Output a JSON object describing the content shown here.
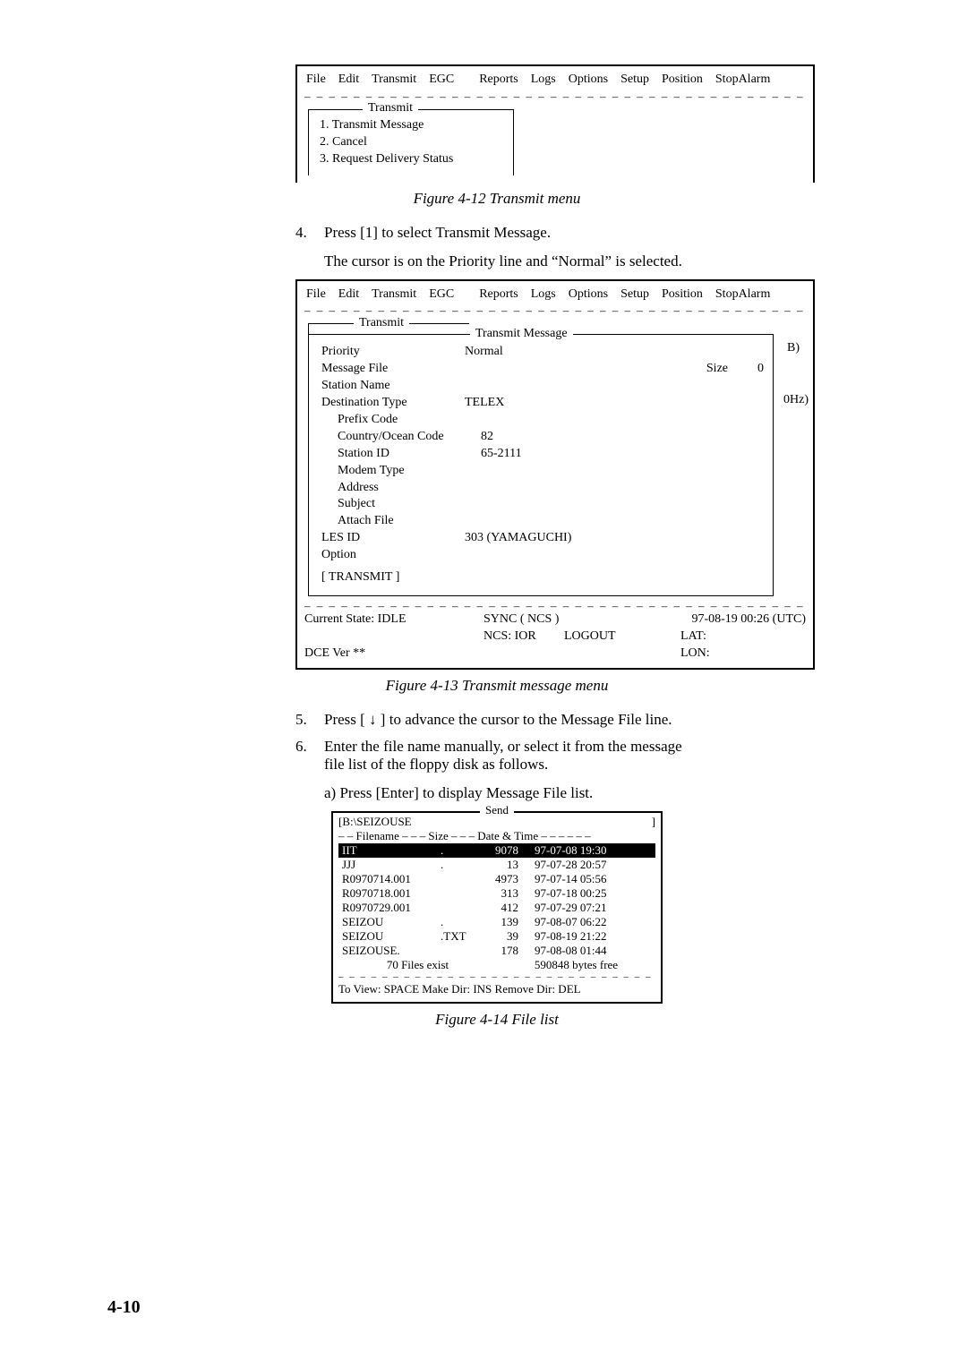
{
  "menubar": [
    "File",
    "Edit",
    "Transmit",
    "EGC",
    "Reports",
    "Logs",
    "Options",
    "Setup",
    "Position",
    "StopAlarm"
  ],
  "fig12": {
    "frame_title": "Transmit",
    "items": [
      "1. Transmit Message",
      "2. Cancel",
      "3. Request Delivery Status"
    ],
    "caption": "Figure 4-12 Transmit menu"
  },
  "step4": {
    "num": "4.",
    "text": "Press [1] to select Transmit Message.",
    "follow": "The cursor is on the Priority line and “Normal” is selected."
  },
  "fig13": {
    "outer_frame_title": "Transmit",
    "inner_frame_title": "Transmit Message",
    "rows": {
      "priority_label": "Priority",
      "priority_value": "Normal",
      "msgfile_label": "Message File",
      "size_label": "Size",
      "size_value": "0",
      "station_label": "Station Name",
      "desttype_label": "Destination Type",
      "desttype_value": "TELEX",
      "prefix_label": "Prefix Code",
      "country_label": "Country/Ocean Code",
      "country_value": "82",
      "stationid_label": "Station ID",
      "stationid_value": "65-2111",
      "modem_label": "Modem Type",
      "address_label": "Address",
      "subject_label": "Subject",
      "attach_label": "Attach File",
      "lesid_label": "LES ID",
      "lesid_value": "303 (YAMAGUCHI)",
      "option_label": "Option",
      "transmit_btn": "[   TRANSMIT   ]"
    },
    "right_annot1": "B)",
    "right_annot2": "0Hz)",
    "status": {
      "cur_state": "Current State: IDLE",
      "sync": "SYNC ( NCS )",
      "datetime": "97-08-19  00:26 (UTC)",
      "ncs": "NCS: IOR",
      "logout": "LOGOUT",
      "lat": "LAT:",
      "dce": "DCE Ver **",
      "lon": "LON:"
    },
    "caption": "Figure 4-13 Transmit message menu"
  },
  "step5": {
    "num": "5.",
    "text": "Press [ ↓ ] to advance the cursor to the Message File line."
  },
  "step6": {
    "num": "6.",
    "text": "Enter the file name manually, or select it from the message file list of the floppy disk as follows.",
    "sub_a": "a) Press [Enter] to display Message File list."
  },
  "fig14": {
    "title": "Send",
    "path_open": "[",
    "path": "B:\\SEIZOUSE",
    "path_close": "]",
    "header": "– – Filename  – – –  Size  – – –  Date & Time  – – – – – –",
    "rows": [
      {
        "name": "IIT",
        "ext": ".",
        "size": "9078",
        "dt": "97-07-08  19:30",
        "sel": true
      },
      {
        "name": "JJJ",
        "ext": ".",
        "size": "13",
        "dt": "97-07-28  20:57"
      },
      {
        "name": "R0970714.001",
        "ext": "",
        "size": "4973",
        "dt": "97-07-14  05:56"
      },
      {
        "name": "R0970718.001",
        "ext": "",
        "size": "313",
        "dt": "97-07-18  00:25"
      },
      {
        "name": "R0970729.001",
        "ext": "",
        "size": "412",
        "dt": "97-07-29  07:21"
      },
      {
        "name": "SEIZOU",
        "ext": ".",
        "size": "139",
        "dt": "97-08-07  06:22"
      },
      {
        "name": "SEIZOU",
        "ext": ".TXT",
        "size": "39",
        "dt": "97-08-19  21:22"
      },
      {
        "name": "SEIZOUSE.",
        "ext": "",
        "size": "178",
        "dt": "97-08-08  01:44"
      }
    ],
    "footer_left": "70  Files exist",
    "footer_right": "590848 bytes free",
    "hint": "To View: SPACE   Make Dir: INS      Remove Dir: DEL",
    "caption": "Figure 4-14 File list"
  },
  "page_number": "4-10",
  "dash": "– – – – – – – – – – – – – – – – – – – – – – – – – – – – – – – – – – – – – – – – – – – – – – – – – – – –"
}
